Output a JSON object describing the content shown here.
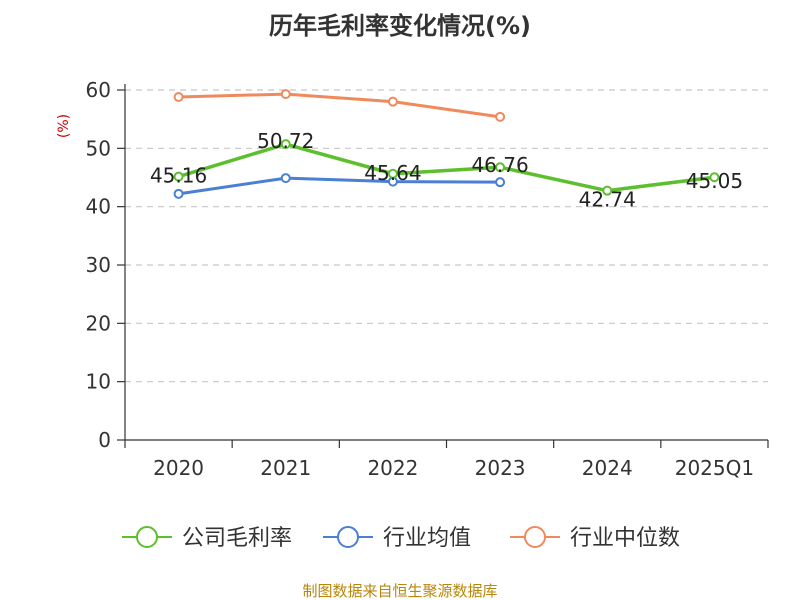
{
  "chart_data": {
    "type": "line",
    "title": "历年毛利率变化情况(%)",
    "ylabel": "(%)",
    "xlabel": "",
    "categories": [
      "2020",
      "2021",
      "2022",
      "2023",
      "2024",
      "2025Q1"
    ],
    "ylim": [
      0,
      60
    ],
    "yticks": [
      0,
      10,
      20,
      30,
      40,
      50,
      60
    ],
    "grid": true,
    "legend_position": "bottom",
    "series": [
      {
        "name": "公司毛利率",
        "color": "#5dbf2e",
        "values": [
          45.16,
          50.72,
          45.64,
          46.76,
          42.74,
          45.05
        ],
        "labels": [
          "45.16",
          "50.72",
          "45.64",
          "46.76",
          "42.74",
          "45.05"
        ]
      },
      {
        "name": "行业均值",
        "color": "#4a7fd4",
        "values": [
          42.2,
          44.9,
          44.3,
          44.2,
          null,
          null
        ],
        "labels": []
      },
      {
        "name": "行业中位数",
        "color": "#f08a5d",
        "values": [
          58.8,
          59.3,
          58.0,
          55.4,
          null,
          null
        ],
        "labels": []
      }
    ],
    "source": "制图数据来自恒生聚源数据库"
  }
}
